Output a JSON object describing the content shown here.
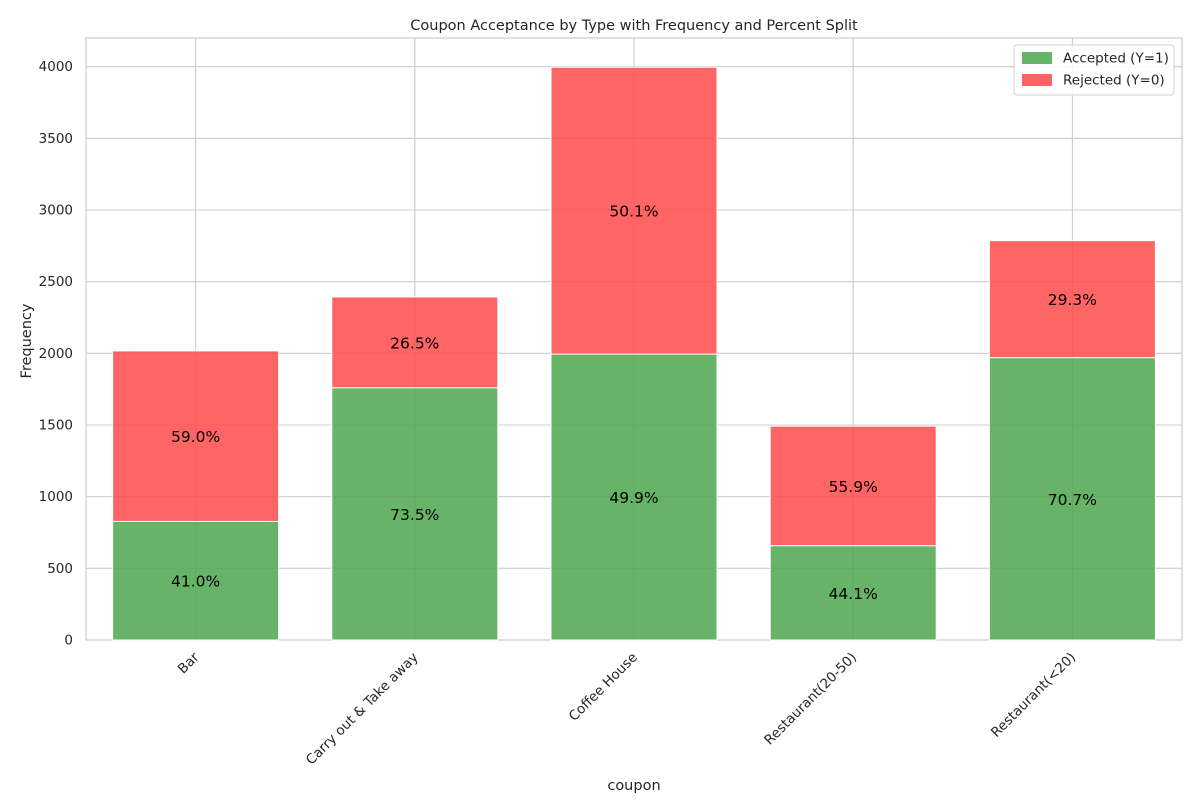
{
  "chart_data": {
    "type": "bar",
    "stacked": true,
    "title": "Coupon Acceptance by Type with Frequency and Percent Split",
    "xlabel": "coupon",
    "ylabel": "Frequency",
    "ylim": [
      0,
      4200
    ],
    "yticks": [
      0,
      500,
      1000,
      1500,
      2000,
      2500,
      3000,
      3500,
      4000
    ],
    "grid": true,
    "legend_position": "top-right",
    "categories": [
      "Bar",
      "Carry out & Take away",
      "Coffee House",
      "Restaurant(20-50)",
      "Restaurant(<20)"
    ],
    "series": [
      {
        "name": "Accepted (Y=1)",
        "color": "#4ca64c",
        "values": [
          827,
          1760,
          1995,
          658,
          1970
        ],
        "percent_labels": [
          "41.0%",
          "73.5%",
          "49.9%",
          "44.1%",
          "70.7%"
        ]
      },
      {
        "name": "Rejected (Y=0)",
        "color": "#ff4a4a",
        "values": [
          1190,
          633,
          2001,
          834,
          816
        ],
        "percent_labels": [
          "59.0%",
          "26.5%",
          "50.1%",
          "55.9%",
          "29.3%"
        ]
      }
    ]
  }
}
